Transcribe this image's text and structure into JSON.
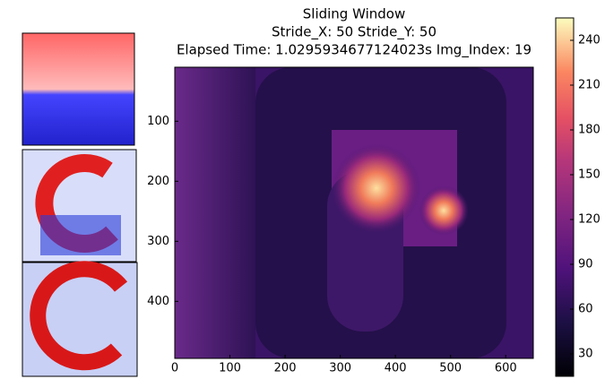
{
  "chart_data": {
    "type": "heatmap",
    "title": [
      "Sliding Window",
      "Stride_X: 50 Stride_Y: 50",
      "Elapsed Time: 1.0295934677124023s Img_Index: 19"
    ],
    "xlim": [
      0,
      650
    ],
    "xticks": [
      0,
      100,
      200,
      300,
      400,
      500,
      600
    ],
    "ylim": [
      495,
      10
    ],
    "yticks": [
      100,
      200,
      300,
      400
    ],
    "colorbar": {
      "lim": [
        15,
        255
      ],
      "ticks": [
        30,
        60,
        90,
        120,
        150,
        180,
        210,
        240
      ],
      "colormap": "magma"
    }
  }
}
